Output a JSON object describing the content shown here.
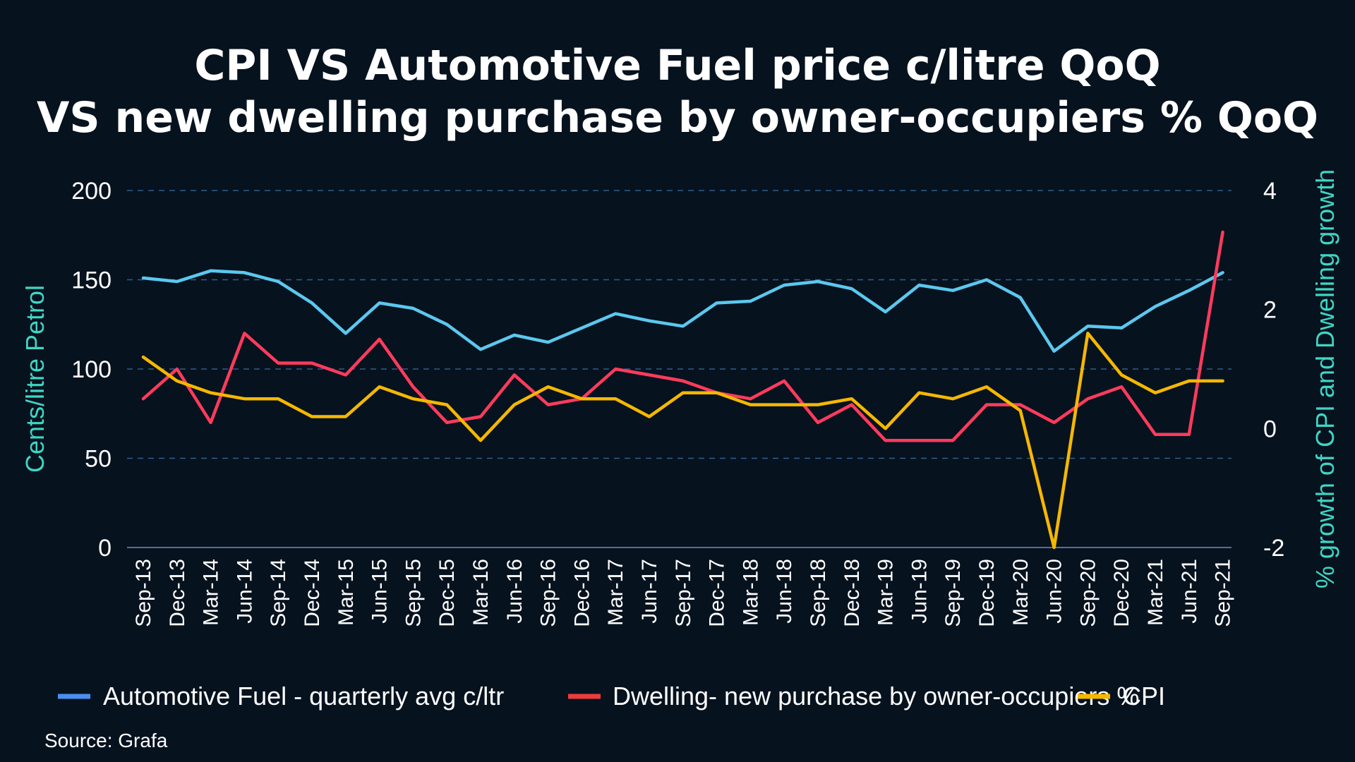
{
  "chart_data": {
    "type": "line",
    "title": [
      "CPI VS Automotive Fuel price c/litre QoQ",
      "VS new dwelling purchase by owner-occupiers % QoQ"
    ],
    "categories": [
      "Sep-13",
      "Dec-13",
      "Mar-14",
      "Jun-14",
      "Sep-14",
      "Dec-14",
      "Mar-15",
      "Jun-15",
      "Sep-15",
      "Dec-15",
      "Mar-16",
      "Jun-16",
      "Sep-16",
      "Dec-16",
      "Mar-17",
      "Jun-17",
      "Sep-17",
      "Dec-17",
      "Mar-18",
      "Jun-18",
      "Sep-18",
      "Dec-18",
      "Mar-19",
      "Jun-19",
      "Sep-19",
      "Dec-19",
      "Mar-20",
      "Jun-20",
      "Sep-20",
      "Dec-20",
      "Mar-21",
      "Jun-21",
      "Sep-21"
    ],
    "left_axis": {
      "label": "Cents/litre Petrol",
      "ylim": [
        0,
        200
      ],
      "ticks": [
        "0",
        "50",
        "100",
        "150",
        "200"
      ],
      "color": "#3fd6c4"
    },
    "right_axis": {
      "label": "% growth of CPI and Dwelling growth",
      "ylim": [
        -2,
        4
      ],
      "ticks": [
        "-2",
        "0",
        "2",
        "4"
      ],
      "color": "#3fd6c4"
    },
    "grid": "dashed horizontal",
    "series": [
      {
        "name": "Automotive Fuel - quarterly avg c/ltr",
        "axis": "left",
        "color": "#5bc8ee",
        "legend_color": "#4a8ff0",
        "values": [
          151,
          149,
          155,
          154,
          149,
          137,
          120,
          137,
          134,
          125,
          111,
          119,
          115,
          123,
          131,
          127,
          124,
          137,
          138,
          147,
          149,
          145,
          132,
          147,
          144,
          150,
          140,
          110,
          124,
          123,
          135,
          144,
          154
        ]
      },
      {
        "name": "Dwelling- new purchase by owner-occupiers %",
        "axis": "right",
        "color": "#ff3b5c",
        "legend_color": "#ef3b3b",
        "values": [
          0.5,
          1.0,
          0.1,
          1.6,
          1.1,
          1.1,
          0.9,
          1.5,
          0.7,
          0.1,
          0.2,
          0.9,
          0.4,
          0.5,
          1.0,
          0.9,
          0.8,
          0.6,
          0.5,
          0.8,
          0.1,
          0.4,
          -0.2,
          -0.2,
          -0.2,
          0.4,
          0.4,
          0.1,
          0.5,
          0.7,
          -0.1,
          -0.1,
          3.3
        ]
      },
      {
        "name": "CPI",
        "axis": "right",
        "color": "#f5b800",
        "legend_color": "#f5b800",
        "values": [
          1.2,
          0.8,
          0.6,
          0.5,
          0.5,
          0.2,
          0.2,
          0.7,
          0.5,
          0.4,
          -0.2,
          0.4,
          0.7,
          0.5,
          0.5,
          0.2,
          0.6,
          0.6,
          0.4,
          0.4,
          0.4,
          0.5,
          0.0,
          0.6,
          0.5,
          0.7,
          0.3,
          -2.0,
          1.6,
          0.9,
          0.6,
          0.8,
          0.8
        ]
      }
    ],
    "source": "Source: Grafa"
  }
}
